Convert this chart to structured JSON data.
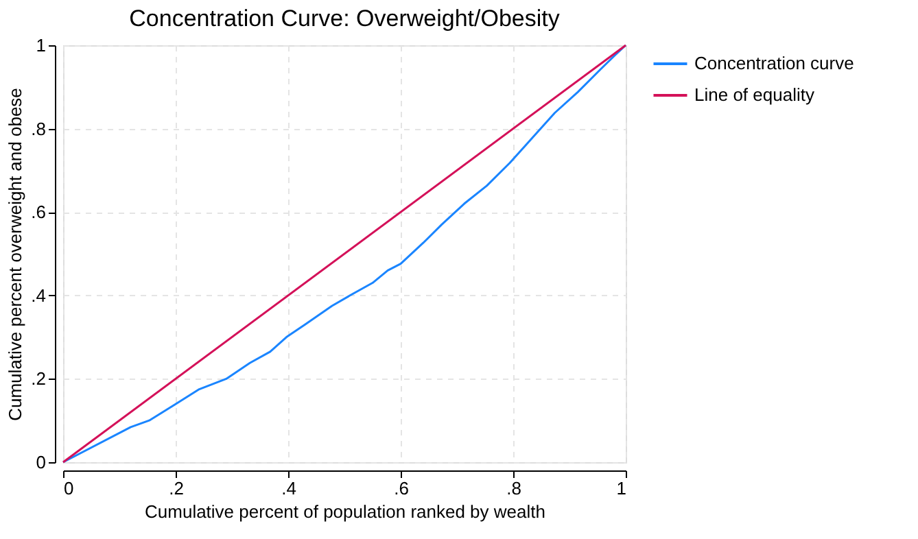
{
  "chart_data": {
    "type": "line",
    "title": "Concentration Curve: Overweight/Obesity",
    "xlabel": "Cumulative percent of population ranked by wealth",
    "ylabel": "Cumulative percent overweight and obese",
    "series": [
      {
        "name": "Concentration curve",
        "color": "#1a85ff",
        "x": [
          0,
          0.12,
          0.153,
          0.177,
          0.242,
          0.29,
          0.332,
          0.368,
          0.397,
          0.43,
          0.478,
          0.51,
          0.55,
          0.577,
          0.6,
          0.64,
          0.673,
          0.713,
          0.753,
          0.794,
          0.834,
          0.874,
          0.915,
          0.955,
          0.98,
          1
        ],
        "values": [
          0,
          0.084,
          0.1,
          0.12,
          0.175,
          0.2,
          0.238,
          0.265,
          0.3,
          0.33,
          0.375,
          0.4,
          0.43,
          0.46,
          0.476,
          0.526,
          0.57,
          0.62,
          0.663,
          0.718,
          0.778,
          0.838,
          0.888,
          0.942,
          0.975,
          1
        ]
      },
      {
        "name": "Line of equality",
        "color": "#d41159",
        "x": [
          0,
          1
        ],
        "values": [
          0,
          1
        ]
      }
    ],
    "xlim": [
      0,
      1
    ],
    "ylim": [
      0,
      1
    ],
    "xticks": [
      0,
      {
        "value": 0.2,
        "label": ".2"
      },
      {
        "value": 0.4,
        "label": ".4"
      },
      {
        "value": 0.6,
        "label": ".6"
      },
      {
        "value": 0.8,
        "label": ".8"
      },
      1
    ],
    "yticks": [
      0,
      {
        "value": 0.2,
        "label": ".2"
      },
      {
        "value": 0.4,
        "label": ".4"
      },
      {
        "value": 0.6,
        "label": ".6"
      },
      {
        "value": 0.8,
        "label": ".8"
      },
      1
    ],
    "grid": true,
    "legend": "right",
    "line_style": "solid",
    "marker": "none"
  }
}
